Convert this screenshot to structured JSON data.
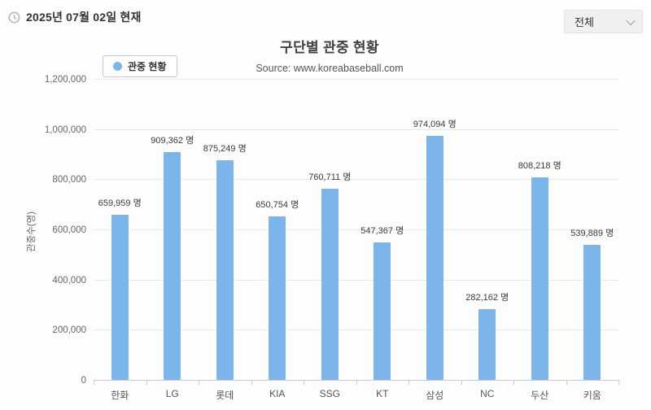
{
  "header": {
    "date_text": "2025년 07월 02일 현재"
  },
  "filter": {
    "selected_value": "전체"
  },
  "chart": {
    "title": "구단별 관중 현황",
    "subtitle": "Source: www.koreabaseball.com",
    "legend_label": "관중 현황",
    "y_axis_title": "관중수(명)"
  },
  "colors": {
    "bar": "#7cb5ec",
    "gridline": "#e9e9e9",
    "axis_line": "#cccccc",
    "tick": "#cccccc"
  },
  "chart_data": {
    "type": "bar",
    "title": "구단별 관중 현황",
    "subtitle": "Source: www.koreabaseball.com",
    "legend_entries": [
      "관중 현황"
    ],
    "legend_position": "top-left",
    "categories": [
      "한화",
      "LG",
      "롯데",
      "KIA",
      "SSG",
      "KT",
      "삼성",
      "NC",
      "두산",
      "키움"
    ],
    "values": [
      659959,
      909362,
      875249,
      650754,
      760711,
      547367,
      974094,
      282162,
      808218,
      539889
    ],
    "value_labels": [
      "659,959 명",
      "909,362 명",
      "875,249 명",
      "650,754 명",
      "760,711 명",
      "547,367 명",
      "974,094 명",
      "282,162 명",
      "808,218 명",
      "539,889 명"
    ],
    "xlabel": "",
    "ylabel": "관중수(명)",
    "ylim": [
      0,
      1200000
    ],
    "grid": true,
    "y_ticks": [
      {
        "value": 0,
        "label": "0"
      },
      {
        "value": 200000,
        "label": "200,000"
      },
      {
        "value": 400000,
        "label": "400,000"
      },
      {
        "value": 600000,
        "label": "600,000"
      },
      {
        "value": 800000,
        "label": "800,000"
      },
      {
        "value": 1000000,
        "label": "1,000,000"
      },
      {
        "value": 1200000,
        "label": "1,200,000"
      }
    ]
  }
}
